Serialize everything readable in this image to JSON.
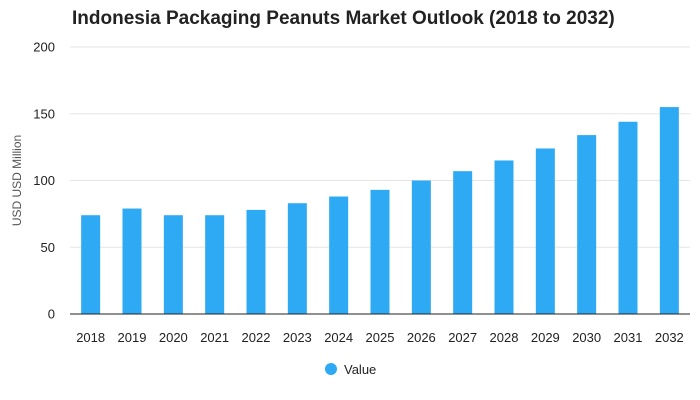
{
  "chart_data": {
    "type": "bar",
    "title": "Indonesia Packaging Peanuts Market Outlook (2018 to 2032)",
    "xlabel": "",
    "ylabel": "USD USD Million",
    "categories": [
      "2018",
      "2019",
      "2020",
      "2021",
      "2022",
      "2023",
      "2024",
      "2025",
      "2026",
      "2027",
      "2028",
      "2029",
      "2030",
      "2031",
      "2032"
    ],
    "series": [
      {
        "name": "Value",
        "values": [
          74,
          79,
          74,
          74,
          78,
          83,
          88,
          93,
          100,
          107,
          115,
          124,
          134,
          144,
          155
        ]
      }
    ],
    "ylim": [
      0,
      200
    ],
    "yticks": [
      "0",
      "50",
      "100",
      "150",
      "200"
    ],
    "grid": true,
    "legend_position": "bottom-center",
    "colors": {
      "bar": "#2eaaf5",
      "grid": "#e5e5e5",
      "axis": "#222222"
    }
  }
}
